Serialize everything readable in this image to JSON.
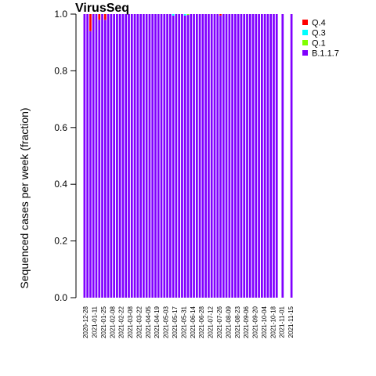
{
  "chart_data": {
    "type": "bar",
    "stacked": true,
    "title": "VirusSeq",
    "ylabel": "Sequenced cases per week (fraction)",
    "xlabel": "",
    "ylim": [
      0,
      1
    ],
    "yticks": [
      "0.0",
      "0.2",
      "0.4",
      "0.6",
      "0.8",
      "1.0"
    ],
    "xtick_labels": [
      "2020-12-28",
      "2021-01-11",
      "2021-01-25",
      "2021-02-08",
      "2021-02-22",
      "2021-03-08",
      "2021-03-22",
      "2021-04-05",
      "2021-04-19",
      "2021-05-03",
      "2021-05-17",
      "2021-05-31",
      "2021-06-14",
      "2021-06-28",
      "2021-07-12",
      "2021-07-26",
      "2021-08-09",
      "2021-08-23",
      "2021-09-06",
      "2021-09-20",
      "2021-10-04",
      "2021-10-18",
      "2021-11-01",
      "2021-11-15"
    ],
    "legend_position": "top-right",
    "series": [
      {
        "name": "Q.4",
        "color": "#ff0000",
        "values": [
          0,
          0,
          0.06,
          0,
          0,
          0.02,
          0,
          0.02,
          0,
          0,
          0,
          0,
          0,
          0,
          0,
          0,
          0,
          0,
          0,
          0,
          0,
          0,
          0,
          0,
          0,
          0,
          0,
          0,
          0,
          0,
          0,
          0,
          0,
          0,
          0,
          0,
          0,
          0,
          0,
          0,
          0,
          0,
          0,
          0,
          0,
          0,
          0.005,
          0,
          0,
          0,
          0,
          0,
          0,
          0,
          0,
          0,
          0,
          0,
          0,
          0,
          0,
          0,
          0,
          0,
          0,
          0,
          0,
          0,
          0,
          0,
          0
        ]
      },
      {
        "name": "Q.3",
        "color": "#00ffff",
        "values": [
          0,
          0,
          0,
          0,
          0,
          0,
          0,
          0,
          0,
          0,
          0,
          0,
          0,
          0,
          0,
          0,
          0,
          0,
          0,
          0,
          0,
          0,
          0,
          0,
          0,
          0,
          0,
          0,
          0,
          0,
          0.005,
          0,
          0,
          0,
          0.005,
          0,
          0,
          0,
          0,
          0,
          0,
          0,
          0,
          0,
          0,
          0,
          0,
          0,
          0,
          0,
          0,
          0,
          0,
          0,
          0,
          0,
          0,
          0,
          0,
          0,
          0,
          0,
          0,
          0,
          0,
          0,
          0,
          0,
          0,
          0,
          0
        ]
      },
      {
        "name": "Q.1",
        "color": "#80ff00",
        "values": [
          0,
          0,
          0,
          0,
          0,
          0,
          0,
          0,
          0,
          0,
          0,
          0,
          0,
          0,
          0,
          0,
          0,
          0,
          0,
          0,
          0,
          0,
          0,
          0,
          0,
          0,
          0,
          0,
          0,
          0,
          0,
          0,
          0,
          0,
          0,
          0.003,
          0,
          0,
          0,
          0,
          0,
          0,
          0,
          0,
          0,
          0,
          0,
          0,
          0,
          0,
          0,
          0,
          0,
          0,
          0,
          0,
          0,
          0,
          0,
          0,
          0,
          0,
          0,
          0,
          0,
          0,
          0,
          0,
          0,
          0,
          0
        ]
      },
      {
        "name": "B.1.1.7",
        "color": "#8000ff",
        "values": [
          1,
          1,
          0.94,
          1,
          1,
          0.98,
          1,
          0.98,
          1,
          1,
          1,
          1,
          1,
          1,
          1,
          1,
          1,
          1,
          1,
          1,
          1,
          1,
          1,
          1,
          1,
          1,
          1,
          1,
          1,
          1,
          0.995,
          1,
          1,
          1,
          0.995,
          0.997,
          1,
          1,
          1,
          1,
          1,
          1,
          1,
          1,
          1,
          1,
          0.995,
          1,
          1,
          1,
          1,
          1,
          1,
          1,
          1,
          1,
          1,
          1,
          1,
          1,
          1,
          1,
          1,
          1,
          1,
          1,
          0,
          1,
          0,
          0,
          1
        ]
      }
    ]
  }
}
